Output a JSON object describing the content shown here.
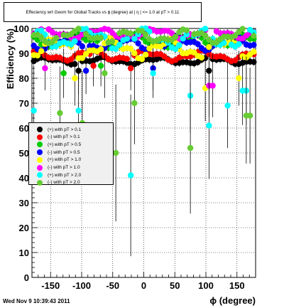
{
  "header": {
    "title": "Effeciency wrt Geom for Global Tracks vs ϕ (degree) at |  η | <= 1.0 at pT > 0.11"
  },
  "footer": {
    "timestamp": "Wed Nov  9 10:39:43 2011"
  },
  "chart_data": {
    "type": "scatter",
    "title": "Effeciency wrt Geom for Global Tracks vs ϕ (degree) at |  η | <= 1.0 at pT > 0.11",
    "xlabel": "ϕ (degree)",
    "ylabel": "Efficiency (%)",
    "xlim": [
      -180,
      180
    ],
    "ylim": [
      0,
      100
    ],
    "xticks": [
      -150,
      -100,
      -50,
      0,
      50,
      100,
      150
    ],
    "yticks": [
      0,
      10,
      20,
      30,
      40,
      50,
      60,
      70,
      80,
      90,
      100
    ],
    "xtick_labels": [
      "-150",
      "-100",
      "-50",
      "0",
      "50",
      "100",
      "150"
    ],
    "ytick_labels": [
      "0",
      "10",
      "20",
      "30",
      "40",
      "50",
      "60",
      "70",
      "80",
      "90",
      "100"
    ],
    "grid": true,
    "legend_position": "middle-left",
    "series": [
      {
        "name": "(+) with pT > 0.1",
        "color": "#000000",
        "base": 87,
        "amp": 1.0,
        "dips": [
          [
            -105,
            83
          ],
          [
            103,
            83
          ]
        ]
      },
      {
        "name": "(-) with pT > 0.1",
        "color": "#ff0000",
        "base": 89,
        "amp": 1.5,
        "dips": [
          [
            -80,
            85
          ],
          [
            -20,
            84
          ]
        ]
      },
      {
        "name": "(+) with pT > 0.5",
        "color": "#00cc00",
        "base": 95,
        "amp": 2.0,
        "dips": [
          [
            -130,
            82
          ],
          [
            -70,
            85
          ]
        ]
      },
      {
        "name": "(-) with pT > 0.5",
        "color": "#0000ff",
        "base": 94,
        "amp": 2.0,
        "dips": [
          [
            -95,
            83
          ],
          [
            15,
            84
          ]
        ]
      },
      {
        "name": "(+) with pT > 1.0",
        "color": "#ffff00",
        "base": 92,
        "amp": 3.0,
        "dips": [
          [
            -110,
            80
          ],
          [
            97,
            76
          ],
          [
            155,
            80
          ]
        ]
      },
      {
        "name": "(-) with pT > 1.0",
        "color": "#ff00ff",
        "base": 98,
        "amp": 1.5,
        "dips": [
          [
            -160,
            84
          ],
          [
            108,
            77
          ]
        ]
      },
      {
        "name": "(+) with pT > 2.0",
        "color": "#00ffff",
        "base": 96,
        "amp": 3.0,
        "dips": [
          [
            -175,
            67
          ],
          [
            -105,
            67
          ],
          [
            -20,
            41
          ],
          [
            73,
            73
          ],
          [
            103,
            61
          ],
          [
            133,
            69
          ],
          [
            162,
            75
          ],
          [
            15,
            82
          ]
        ]
      },
      {
        "name": "(-) with pT > 2.0",
        "color": "#66cc33",
        "base": 97,
        "amp": 2.0,
        "dips": [
          [
            -137,
            66
          ],
          [
            -100,
            62
          ],
          [
            -45,
            50
          ],
          [
            -15,
            70
          ],
          [
            77,
            52
          ],
          [
            168,
            65
          ],
          [
            -65,
            82
          ]
        ]
      }
    ]
  }
}
